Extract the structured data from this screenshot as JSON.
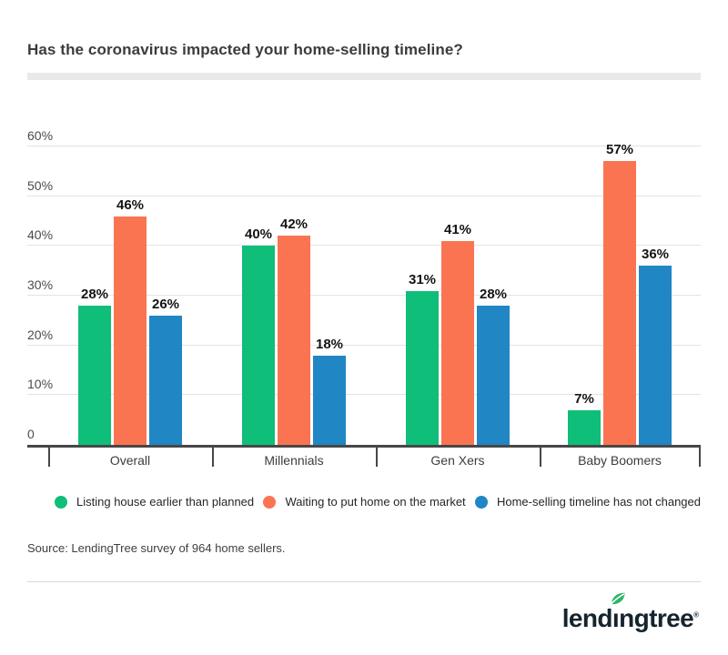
{
  "title": "Has the coronavirus impacted your home-selling timeline?",
  "chart_data": {
    "type": "bar",
    "title": "Has the coronavirus impacted your home-selling timeline?",
    "categories": [
      "Overall",
      "Millennials",
      "Gen Xers",
      "Baby Boomers"
    ],
    "series": [
      {
        "name": "Listing house earlier than planned",
        "color": "#0fbe79",
        "values": [
          28,
          40,
          31,
          7
        ]
      },
      {
        "name": "Waiting to put home on the market",
        "color": "#fb7452",
        "values": [
          46,
          42,
          41,
          57
        ]
      },
      {
        "name": "Home-selling timeline has not changed",
        "color": "#2186c4",
        "values": [
          26,
          18,
          28,
          36
        ]
      }
    ],
    "value_suffix": "%",
    "ylim": [
      0,
      60
    ],
    "y_ticks": [
      {
        "value": 60,
        "label": "60%"
      },
      {
        "value": 50,
        "label": "50%"
      },
      {
        "value": 40,
        "label": "40%"
      },
      {
        "value": 30,
        "label": "30%"
      },
      {
        "value": 20,
        "label": "20%"
      },
      {
        "value": 10,
        "label": "10%"
      },
      {
        "value": 0,
        "label": "0"
      }
    ],
    "grid": true,
    "legend_position": "bottom"
  },
  "source": "Source: LendingTree survey of 964 home sellers.",
  "logo": {
    "pre": "lend",
    "i": "ı",
    "post": "ngtree",
    "registered": "®",
    "leaf_color": "#2eb563",
    "text_color": "#15242d"
  },
  "colors": {
    "title_text": "#3c3c3c",
    "top_bar": "#e9e9e9",
    "gridline": "#e3e3e3",
    "axis": "#474747",
    "bar_green": "#0fbe79",
    "bar_orange": "#fb7452",
    "bar_blue": "#2186c4"
  }
}
